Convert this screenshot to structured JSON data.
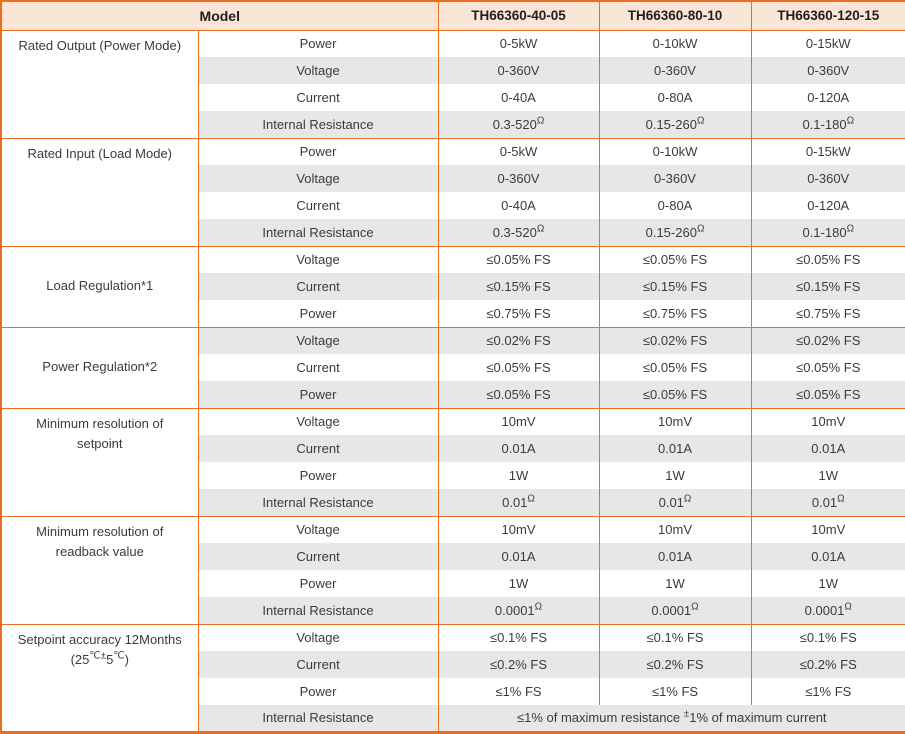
{
  "header": {
    "model_label": "Model",
    "models": [
      "TH66360-40-05",
      "TH66360-80-10",
      "TH66360-120-15"
    ]
  },
  "groups": [
    {
      "label": "Rated Output (Power Mode)",
      "rows": [
        {
          "param": "Power",
          "values": [
            "0-5kW",
            "0-10kW",
            "0-15kW"
          ]
        },
        {
          "param": "Voltage",
          "values": [
            "0-360V",
            "0-360V",
            "0-360V"
          ]
        },
        {
          "param": "Current",
          "values": [
            "0-40A",
            "0-80A",
            "0-120A"
          ]
        },
        {
          "param": "Internal Resistance",
          "values": [
            "0.3-520Ω",
            "0.15-260Ω",
            "0.1-180Ω"
          ]
        }
      ]
    },
    {
      "label": "Rated Input (Load Mode)",
      "rows": [
        {
          "param": "Power",
          "values": [
            "0-5kW",
            "0-10kW",
            "0-15kW"
          ]
        },
        {
          "param": "Voltage",
          "values": [
            "0-360V",
            "0-360V",
            "0-360V"
          ]
        },
        {
          "param": "Current",
          "values": [
            "0-40A",
            "0-80A",
            "0-120A"
          ]
        },
        {
          "param": "Internal Resistance",
          "values": [
            "0.3-520Ω",
            "0.15-260Ω",
            "0.1-180Ω"
          ]
        }
      ]
    },
    {
      "label": "Load Regulation*1",
      "rows": [
        {
          "param": "Voltage",
          "values": [
            "≤0.05% FS",
            "≤0.05% FS",
            "≤0.05% FS"
          ]
        },
        {
          "param": "Current",
          "values": [
            "≤0.15% FS",
            "≤0.15% FS",
            "≤0.15% FS"
          ]
        },
        {
          "param": "Power",
          "values": [
            "≤0.75% FS",
            "≤0.75% FS",
            "≤0.75% FS"
          ]
        }
      ]
    },
    {
      "label": "Power Regulation*2",
      "rows": [
        {
          "param": "Voltage",
          "values": [
            "≤0.02% FS",
            "≤0.02% FS",
            "≤0.02% FS"
          ]
        },
        {
          "param": "Current",
          "values": [
            "≤0.05% FS",
            "≤0.05% FS",
            "≤0.05% FS"
          ]
        },
        {
          "param": "Power",
          "values": [
            "≤0.05% FS",
            "≤0.05% FS",
            "≤0.05% FS"
          ]
        }
      ]
    },
    {
      "label": "Minimum resolution of\nsetpoint",
      "rows": [
        {
          "param": "Voltage",
          "values": [
            "10mV",
            "10mV",
            "10mV"
          ]
        },
        {
          "param": "Current",
          "values": [
            "0.01A",
            "0.01A",
            "0.01A"
          ]
        },
        {
          "param": "Power",
          "values": [
            "1W",
            "1W",
            "1W"
          ]
        },
        {
          "param": "Internal Resistance",
          "values": [
            "0.01Ω",
            "0.01Ω",
            "0.01Ω"
          ]
        }
      ]
    },
    {
      "label": "Minimum resolution of\nreadback value",
      "rows": [
        {
          "param": "Voltage",
          "values": [
            "10mV",
            "10mV",
            "10mV"
          ]
        },
        {
          "param": "Current",
          "values": [
            "0.01A",
            "0.01A",
            "0.01A"
          ]
        },
        {
          "param": "Power",
          "values": [
            "1W",
            "1W",
            "1W"
          ]
        },
        {
          "param": "Internal Resistance",
          "values": [
            "0.0001Ω",
            "0.0001Ω",
            "0.0001Ω"
          ]
        }
      ]
    },
    {
      "label": "Setpoint accuracy 12Months\n(25℃±5℃)",
      "rows": [
        {
          "param": "Voltage",
          "values": [
            "≤0.1% FS",
            "≤0.1% FS",
            "≤0.1% FS"
          ]
        },
        {
          "param": "Current",
          "values": [
            "≤0.2% FS",
            "≤0.2% FS",
            "≤0.2% FS"
          ]
        },
        {
          "param": "Power",
          "values": [
            "≤1% FS",
            "≤1% FS",
            "≤1% FS"
          ]
        },
        {
          "param": "Internal Resistance",
          "span_value": "≤1% of maximum resistance ±1% of maximum current"
        }
      ]
    }
  ],
  "colors": {
    "border": "#ED6C1E",
    "header_bg": "#FBE5D6",
    "row_alt_bg": "#E7E7E8",
    "text": "#3B3B3B"
  }
}
